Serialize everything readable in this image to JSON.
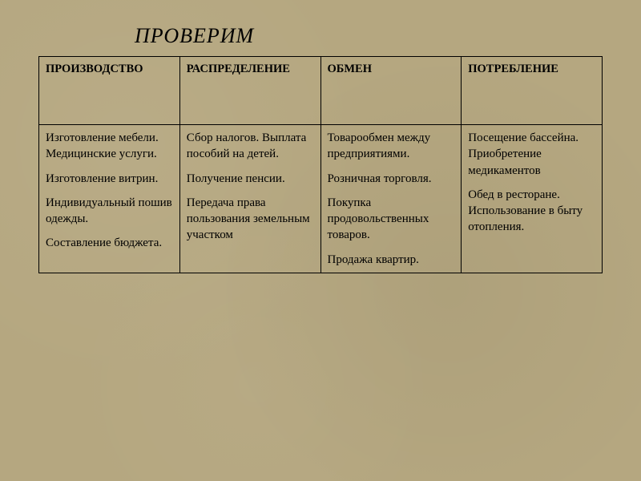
{
  "title": "ПРОВЕРИМ",
  "colors": {
    "background": "#b5a780",
    "text": "#000000",
    "border": "#000000"
  },
  "typography": {
    "title_font": "Times New Roman",
    "title_style": "italic",
    "title_fontsize_pt": 20,
    "body_font": "Times New Roman",
    "body_fontsize_pt": 11,
    "header_font_weight": "bold"
  },
  "table": {
    "type": "table",
    "columns": [
      {
        "label": "ПРОИЗВОДСТВО",
        "width_pct": 25
      },
      {
        "label": "РАСПРЕДЕЛЕНИЕ",
        "width_pct": 25
      },
      {
        "label": "ОБМЕН",
        "width_pct": 25
      },
      {
        "label": "ПОТРЕБЛЕНИЕ",
        "width_pct": 25
      }
    ],
    "rows": [
      {
        "cells": [
          {
            "paragraphs": [
              "Изготовление мебели. Медицинские услуги.",
              "Изготовление витрин.",
              "Индивидуальный пошив одежды.",
              "",
              "Составление бюджета."
            ]
          },
          {
            "paragraphs": [
              "Сбор налогов. Выплата пособий на детей.",
              "Получение пенсии.",
              "Передача права пользования земельным участком"
            ]
          },
          {
            "paragraphs": [
              "Товарообмен между предприятиями.",
              "Розничная торговля.",
              "",
              "Покупка продовольственных товаров.",
              "Продажа квартир."
            ]
          },
          {
            "paragraphs": [
              "Посещение бассейна. Приобретение медикаментов",
              "Обед в ресторане. Использование в быту  отопления."
            ]
          }
        ]
      }
    ]
  }
}
